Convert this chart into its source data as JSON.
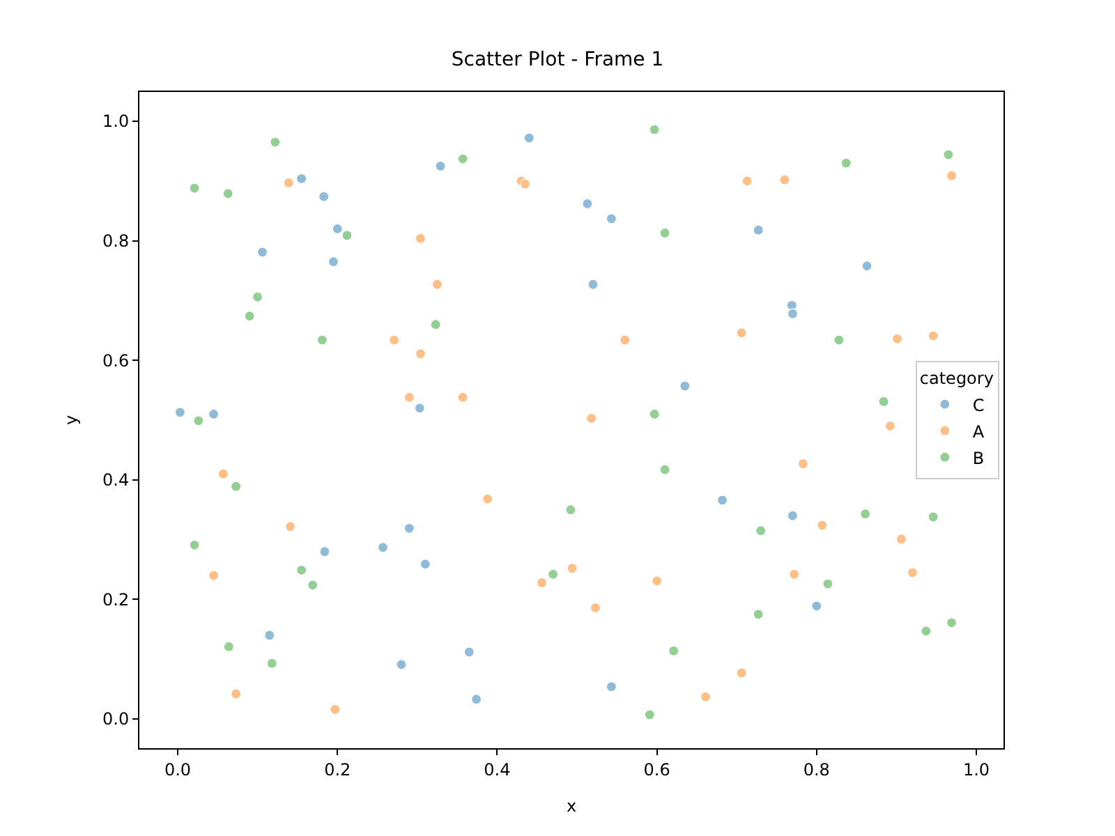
{
  "chart_data": {
    "type": "scatter",
    "title": "Scatter Plot - Frame 1",
    "xlabel": "x",
    "ylabel": "y",
    "legend_title": "category",
    "xlim": [
      -0.048,
      1.034
    ],
    "ylim": [
      -0.049,
      1.049
    ],
    "xticks": [
      {
        "value": 0,
        "label": "0.0"
      },
      0.2,
      0.4,
      0.6,
      0.8,
      {
        "value": 1,
        "label": "1.0"
      }
    ],
    "yticks": [
      {
        "value": 0,
        "label": "0.0"
      },
      0.2,
      0.4,
      0.6,
      0.8,
      {
        "value": 1,
        "label": "1.0"
      }
    ],
    "legend": "right",
    "marker": "circle",
    "series": [
      {
        "name": "C",
        "color": "#8fbbd9",
        "x": [
          0.003,
          0.045,
          0.155,
          0.183,
          0.2,
          0.195,
          0.106,
          0.329,
          0.44,
          0.513,
          0.543,
          0.52,
          0.727,
          0.863,
          0.769,
          0.77,
          0.635,
          0.303,
          0.29,
          0.257,
          0.184,
          0.31,
          0.115,
          0.28,
          0.365,
          0.374,
          0.543,
          0.682,
          0.77,
          0.8
        ],
        "values": [
          0.513,
          0.51,
          0.904,
          0.874,
          0.82,
          0.765,
          0.781,
          0.925,
          0.972,
          0.862,
          0.837,
          0.727,
          0.818,
          0.758,
          0.692,
          0.678,
          0.557,
          0.52,
          0.319,
          0.287,
          0.28,
          0.259,
          0.14,
          0.091,
          0.112,
          0.033,
          0.054,
          0.366,
          0.34,
          0.189
        ]
      },
      {
        "name": "A",
        "color": "#ffbf86",
        "x": [
          0.139,
          0.43,
          0.435,
          0.304,
          0.325,
          0.271,
          0.304,
          0.29,
          0.357,
          0.56,
          0.518,
          0.713,
          0.76,
          0.969,
          0.706,
          0.901,
          0.057,
          0.388,
          0.141,
          0.045,
          0.456,
          0.494,
          0.523,
          0.6,
          0.783,
          0.807,
          0.772,
          0.906,
          0.92,
          0.706,
          0.661,
          0.073,
          0.197,
          0.892,
          0.946
        ],
        "values": [
          0.897,
          0.9,
          0.895,
          0.804,
          0.727,
          0.634,
          0.611,
          0.538,
          0.538,
          0.634,
          0.503,
          0.9,
          0.902,
          0.909,
          0.646,
          0.636,
          0.41,
          0.368,
          0.322,
          0.24,
          0.228,
          0.252,
          0.186,
          0.231,
          0.427,
          0.324,
          0.242,
          0.301,
          0.245,
          0.077,
          0.037,
          0.042,
          0.016,
          0.49,
          0.641
        ]
      },
      {
        "name": "B",
        "color": "#93cf93",
        "x": [
          0.021,
          0.063,
          0.122,
          0.1,
          0.09,
          0.212,
          0.181,
          0.323,
          0.357,
          0.597,
          0.61,
          0.837,
          0.965,
          0.828,
          0.884,
          0.597,
          0.61,
          0.026,
          0.073,
          0.021,
          0.155,
          0.169,
          0.064,
          0.118,
          0.492,
          0.47,
          0.73,
          0.861,
          0.946,
          0.814,
          0.727,
          0.621,
          0.591,
          0.937,
          0.969
        ],
        "values": [
          0.888,
          0.879,
          0.965,
          0.706,
          0.674,
          0.809,
          0.634,
          0.66,
          0.937,
          0.986,
          0.813,
          0.93,
          0.944,
          0.634,
          0.531,
          0.51,
          0.417,
          0.499,
          0.389,
          0.291,
          0.249,
          0.224,
          0.121,
          0.093,
          0.35,
          0.242,
          0.315,
          0.343,
          0.338,
          0.226,
          0.175,
          0.114,
          0.007,
          0.147,
          0.161
        ]
      }
    ]
  }
}
